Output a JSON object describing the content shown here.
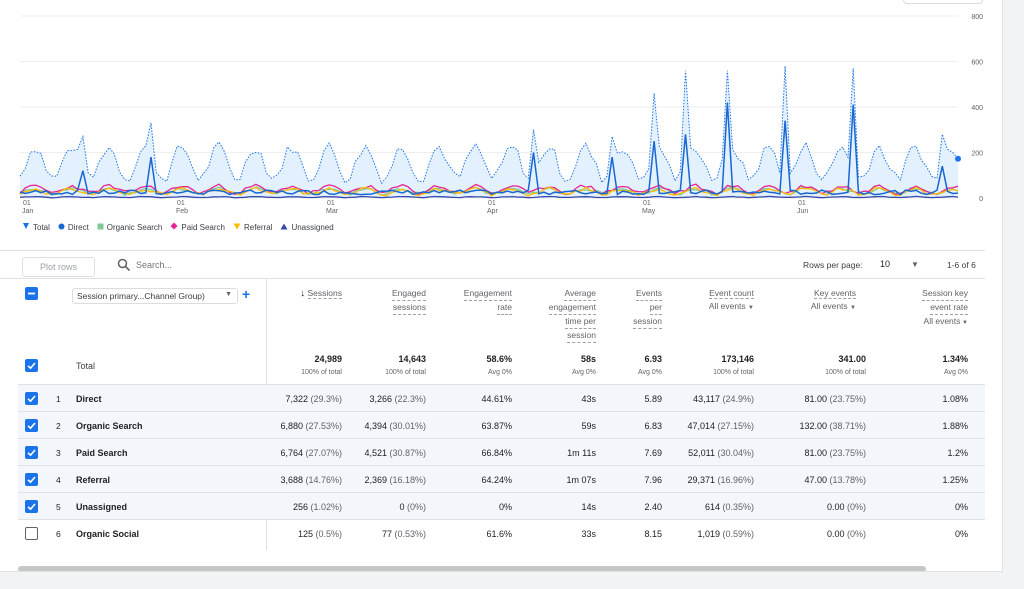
{
  "chart_data": {
    "type": "line",
    "x_labels": [
      {
        "day": "01",
        "month": "Jan"
      },
      {
        "day": "01",
        "month": "Feb"
      },
      {
        "day": "01",
        "month": "Mar"
      },
      {
        "day": "01",
        "month": "Apr"
      },
      {
        "day": "01",
        "month": "May"
      },
      {
        "day": "01",
        "month": "Jun"
      }
    ],
    "y_ticks": [
      "0",
      "200",
      "400",
      "600",
      "800"
    ],
    "ylim": [
      0,
      800
    ],
    "grid": true,
    "legend_position": "bottom-left",
    "series": [
      {
        "name": "Total",
        "color": "#1a73e8",
        "style": "dotted-area"
      },
      {
        "name": "Direct",
        "color": "#1967d2",
        "style": "line"
      },
      {
        "name": "Organic Search",
        "color": "#81c995",
        "style": "line"
      },
      {
        "name": "Paid Search",
        "color": "#e52592",
        "style": "line"
      },
      {
        "name": "Referral",
        "color": "#fbbc04",
        "style": "line"
      },
      {
        "name": "Unassigned",
        "color": "#3949ab",
        "style": "line"
      }
    ],
    "legend_marks": [
      "pin",
      "circle",
      "square",
      "diamond",
      "triangle-down",
      "triangle-up"
    ]
  },
  "toolbar": {
    "plot_rows": "Plot rows",
    "search_placeholder": "Search...",
    "rows_per_page_label": "Rows per page:",
    "rows_per_page_value": "10",
    "range": "1-6 of 6"
  },
  "dimension_select": "Session primary...Channel Group)",
  "headers": {
    "sessions": "Sessions",
    "engaged": [
      "Engaged",
      "sessions"
    ],
    "engagement_rate": [
      "Engagement",
      "rate"
    ],
    "avg_engagement": [
      "Average",
      "engagement",
      "time per",
      "session"
    ],
    "events_per": [
      "Events",
      "per",
      "session"
    ],
    "event_count": "Event count",
    "event_count_sub": "All events",
    "key_events": "Key events",
    "key_events_sub": "All events",
    "key_event_rate": [
      "Session key",
      "event rate"
    ],
    "key_event_rate_sub": "All events"
  },
  "total": {
    "label": "Total",
    "values": [
      "24,989",
      "14,643",
      "58.6%",
      "58s",
      "6.93",
      "173,146",
      "341.00",
      "1.34%"
    ],
    "subs": [
      "100% of total",
      "100% of total",
      "Avg 0%",
      "Avg 0%",
      "Avg 0%",
      "100% of total",
      "100% of total",
      "Avg 0%"
    ]
  },
  "rows": [
    {
      "n": "1",
      "name": "Direct",
      "checked": true,
      "sessions": "7,322",
      "sessions_pct": "(29.3%)",
      "engaged": "3,266",
      "engaged_pct": "(22.3%)",
      "rate": "44.61%",
      "time": "43s",
      "eps": "5.89",
      "events": "43,117",
      "events_pct": "(24.9%)",
      "key": "81.00",
      "key_pct": "(23.75%)",
      "krate": "1.08%"
    },
    {
      "n": "2",
      "name": "Organic Search",
      "checked": true,
      "sessions": "6,880",
      "sessions_pct": "(27.53%)",
      "engaged": "4,394",
      "engaged_pct": "(30.01%)",
      "rate": "63.87%",
      "time": "59s",
      "eps": "6.83",
      "events": "47,014",
      "events_pct": "(27.15%)",
      "key": "132.00",
      "key_pct": "(38.71%)",
      "krate": "1.88%"
    },
    {
      "n": "3",
      "name": "Paid Search",
      "checked": true,
      "sessions": "6,764",
      "sessions_pct": "(27.07%)",
      "engaged": "4,521",
      "engaged_pct": "(30.87%)",
      "rate": "66.84%",
      "time": "1m 11s",
      "eps": "7.69",
      "events": "52,011",
      "events_pct": "(30.04%)",
      "key": "81.00",
      "key_pct": "(23.75%)",
      "krate": "1.2%"
    },
    {
      "n": "4",
      "name": "Referral",
      "checked": true,
      "sessions": "3,688",
      "sessions_pct": "(14.76%)",
      "engaged": "2,369",
      "engaged_pct": "(16.18%)",
      "rate": "64.24%",
      "time": "1m 07s",
      "eps": "7.96",
      "events": "29,371",
      "events_pct": "(16.96%)",
      "key": "47.00",
      "key_pct": "(13.78%)",
      "krate": "1.25%"
    },
    {
      "n": "5",
      "name": "Unassigned",
      "checked": true,
      "sessions": "256",
      "sessions_pct": "(1.02%)",
      "engaged": "0",
      "engaged_pct": "(0%)",
      "rate": "0%",
      "time": "14s",
      "eps": "2.40",
      "events": "614",
      "events_pct": "(0.35%)",
      "key": "0.00",
      "key_pct": "(0%)",
      "krate": "0%"
    },
    {
      "n": "6",
      "name": "Organic Social",
      "checked": false,
      "sessions": "125",
      "sessions_pct": "(0.5%)",
      "engaged": "77",
      "engaged_pct": "(0.53%)",
      "rate": "61.6%",
      "time": "33s",
      "eps": "8.15",
      "events": "1,019",
      "events_pct": "(0.59%)",
      "key": "0.00",
      "key_pct": "(0%)",
      "krate": "0%"
    }
  ]
}
